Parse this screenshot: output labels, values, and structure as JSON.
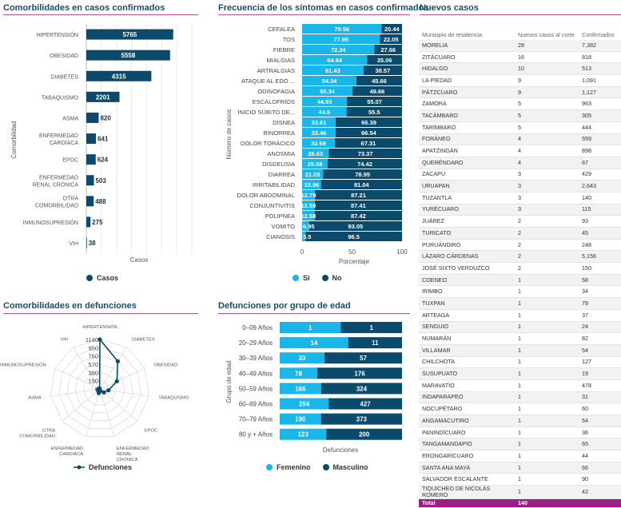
{
  "panels": {
    "comorbidities_cases": {
      "title": "Comorbilidades en casos confirmados"
    },
    "symptoms": {
      "title": "Frecuencia de los síntomas en casos confirmados"
    },
    "new_cases": {
      "title": "Nuevos casos"
    },
    "comorbidities_deaths": {
      "title": "Comorbilidades en defunciones"
    },
    "deaths_age": {
      "title": "Defunciones por grupo de edad"
    }
  },
  "colors": {
    "primary": "#0c4a6b",
    "light": "#1ab6ea",
    "accent_line": "#b5549a",
    "total_row": "#9c1f86"
  },
  "chart_data": [
    {
      "id": "comorbidities_cases",
      "type": "bar",
      "orientation": "horizontal",
      "xlabel": "Casos",
      "ylabel": "Comorbilidad",
      "categories": [
        "HIPERTENSIÓN",
        "OBESIDAD",
        "DIABETES",
        "TABAQUISMO",
        "ASMA",
        "ENFERMEDAD CARDÍACA",
        "EPOC",
        "ENFERMEDAD RENAL CRÓNICA",
        "OTRA COMORBILIDAD",
        "INMUNOSUPRESIÓN",
        "VIH"
      ],
      "category_lines": [
        [
          "HIPERTENSIÓN"
        ],
        [
          "OBESIDAD"
        ],
        [
          "DIABETES"
        ],
        [
          "TABAQUISMO"
        ],
        [
          "ASMA"
        ],
        [
          "ENFERMEDAD",
          "CARDÍACA"
        ],
        [
          "EPOC"
        ],
        [
          "ENFERMEDAD",
          "RENAL CRÓNICA"
        ],
        [
          "OTRA",
          "COMORBILIDAD"
        ],
        [
          "INMUNOSUPRESIÓN"
        ],
        [
          "VIH"
        ]
      ],
      "series": [
        {
          "name": "Casos",
          "values": [
            5765,
            5558,
            4315,
            2201,
            820,
            641,
            624,
            503,
            488,
            275,
            38
          ]
        }
      ],
      "xlim": [
        0,
        7000
      ],
      "legend": "bottom",
      "grid": true
    },
    {
      "id": "symptoms",
      "type": "bar",
      "orientation": "horizontal",
      "stacked": true,
      "xlabel": "Porcentaje",
      "ylabel": "Número de casos",
      "xlim": [
        0,
        100
      ],
      "xticks": [
        0,
        50,
        100
      ],
      "categories": [
        "CEFALEA",
        "TOS",
        "FIEBRE",
        "MIALGIAS",
        "ARTRALGIAS",
        "ATAQUE AL EDO ...",
        "ODINOFAGIA",
        "ESCALOFRÍOS",
        "INICIO SÚBITO DE...",
        "DISNEA",
        "RINORREA",
        "DOLOR TORÁCICO",
        "ANOSMIA",
        "DISGEUSIA",
        "DIARREA",
        "IRRITABILIDAD",
        "DOLOR ABDOMINAL",
        "CONJUNTIVITIS",
        "POLIPNEA",
        "VOMITO",
        "CIANOSIS"
      ],
      "series": [
        {
          "name": "Si",
          "values": [
            79.56,
            77.95,
            72.34,
            64.94,
            61.43,
            54.34,
            50.34,
            44.93,
            44.5,
            33.61,
            33.46,
            32.69,
            26.63,
            25.58,
            21.05,
            18.96,
            12.79,
            12.59,
            12.58,
            6.95,
            3.5
          ]
        },
        {
          "name": "No",
          "values": [
            20.44,
            22.05,
            27.66,
            35.06,
            38.57,
            45.66,
            49.66,
            55.07,
            55.5,
            66.39,
            66.54,
            67.31,
            73.37,
            74.42,
            78.95,
            81.04,
            87.21,
            87.41,
            87.42,
            93.05,
            96.5
          ]
        }
      ],
      "legend": "bottom"
    },
    {
      "id": "comorbidities_deaths",
      "type": "radar",
      "categories": [
        "HIPERTENSIÓN",
        "DIABETES",
        "OBESIDAD",
        "TABAQUISMO",
        "EPOC",
        "ENFERMEDAD RENAL CRÓNICA",
        "ENFERMEDAD CARDÍACA",
        "OTRA COMORBILIDAD",
        "ASMA",
        "INMUNOSUPRESIÓN",
        "VIH"
      ],
      "category_lines": [
        [
          "HIPERTENSIÓN"
        ],
        [
          "DIABETES"
        ],
        [
          "OBESIDAD"
        ],
        [
          "TABAQUISMO"
        ],
        [
          "EPOC"
        ],
        [
          "ENFERMEDAD",
          "RENAL",
          "CRÓNICA"
        ],
        [
          "ENFERMEDAD",
          "CARDÍACA"
        ],
        [
          "OTRA",
          "COMORBILIDAD"
        ],
        [
          "ASMA"
        ],
        [
          "INMUNOSUPRESIÓN"
        ],
        [
          "VIH"
        ]
      ],
      "series": [
        {
          "name": "Defunciones",
          "values": [
            1140,
            760,
            430,
            200,
            120,
            45,
            100,
            55,
            40,
            25,
            12
          ]
        }
      ],
      "ticks": [
        1140,
        950,
        760,
        570,
        380,
        190,
        0
      ],
      "rlim": [
        0,
        1140
      ],
      "legend": "bottom"
    },
    {
      "id": "deaths_age",
      "type": "bar",
      "orientation": "horizontal",
      "stacked": true,
      "normalized": true,
      "xlabel": "Defunciones",
      "ylabel": "Grupo de edad",
      "categories": [
        "0–09 Años",
        "20–29 Años",
        "30–39 Años",
        "40–49 Años",
        "50–59 Años",
        "60–69 Años",
        "70–79 Años",
        "80 y + Años"
      ],
      "series": [
        {
          "name": "Femenino",
          "values": [
            1,
            14,
            33,
            78,
            166,
            284,
            190,
            123
          ]
        },
        {
          "name": "Masculino",
          "values": [
            1,
            11,
            57,
            176,
            324,
            427,
            373,
            200
          ]
        }
      ],
      "legend": "bottom"
    }
  ],
  "table": {
    "headers": [
      "Municipio de residencia",
      "Nuevos casos al corte",
      "Confirmados"
    ],
    "rows": [
      [
        "MORELIA",
        "28",
        "7,382"
      ],
      [
        "ZITÁCUARO",
        "16",
        "818"
      ],
      [
        "HIDALGO",
        "10",
        "513"
      ],
      [
        "LA PIEDAD",
        "9",
        "1,091"
      ],
      [
        "PÁTZCUARO",
        "9",
        "1,127"
      ],
      [
        "ZAMORA",
        "5",
        "963"
      ],
      [
        "TACÁMBARO",
        "5",
        "305"
      ],
      [
        "TARÍMBARO",
        "5",
        "444"
      ],
      [
        "FORÁNEO",
        "4",
        "559"
      ],
      [
        "APATZINGÁN",
        "4",
        "898"
      ],
      [
        "QUERÉNDARO",
        "4",
        "67"
      ],
      [
        "ZACAPU",
        "3",
        "429"
      ],
      [
        "URUAPAN",
        "3",
        "2,643"
      ],
      [
        "TUZANTLA",
        "3",
        "140"
      ],
      [
        "YURÉCUARO",
        "3",
        "115"
      ],
      [
        "JUÁREZ",
        "2",
        "93"
      ],
      [
        "TURICATO",
        "2",
        "45"
      ],
      [
        "PURUÁNDIRO",
        "2",
        "248"
      ],
      [
        "LÁZARO CÁRDENAS",
        "2",
        "5,156"
      ],
      [
        "JOSÉ SIXTO VERDUZCO",
        "2",
        "150"
      ],
      [
        "COENEO",
        "1",
        "58"
      ],
      [
        "IRIMBO",
        "1",
        "34"
      ],
      [
        "TUXPAN",
        "1",
        "79"
      ],
      [
        "ARTEAGA",
        "1",
        "37"
      ],
      [
        "SENGUIO",
        "1",
        "24"
      ],
      [
        "NUMARÁN",
        "1",
        "82"
      ],
      [
        "VILLAMAR",
        "1",
        "54"
      ],
      [
        "CHILCHOTA",
        "1",
        "127"
      ],
      [
        "SUSUPUATO",
        "1",
        "19"
      ],
      [
        "MARAVATÍO",
        "1",
        "478"
      ],
      [
        "INDAPARAPEO",
        "1",
        "31"
      ],
      [
        "NOCUPÉTARO",
        "1",
        "60"
      ],
      [
        "ANGAMACUTIRO",
        "1",
        "54"
      ],
      [
        "PANINDÍCUARO",
        "1",
        "36"
      ],
      [
        "TANGAMANDAPIO",
        "1",
        "65"
      ],
      [
        "ERONGARÍCUARO",
        "1",
        "44"
      ],
      [
        "SANTA ANA MAYA",
        "1",
        "66"
      ],
      [
        "SALVADOR ESCALANTE",
        "1",
        "90"
      ],
      [
        "TIQUICHEO DE NICOLÁS ROMERO",
        "1",
        "42"
      ]
    ],
    "total": {
      "label": "Total",
      "value": "140"
    }
  }
}
